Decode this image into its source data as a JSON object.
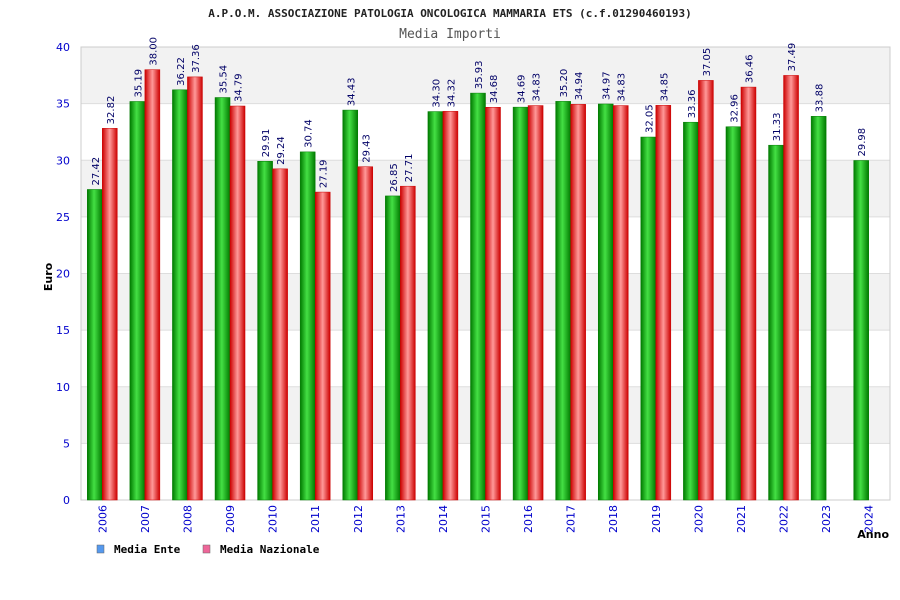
{
  "chart_data": {
    "type": "bar",
    "title": "A.P.O.M. ASSOCIAZIONE PATOLOGIA ONCOLOGICA MAMMARIA ETS (c.f.01290460193)",
    "subtitle": "Media Importi",
    "xlabel": "Anno",
    "ylabel": "Euro",
    "ylim": [
      0,
      40
    ],
    "yticks": [
      "0",
      "5",
      "10",
      "15",
      "20",
      "25",
      "30",
      "35",
      "40"
    ],
    "categories": [
      "2006",
      "2007",
      "2008",
      "2009",
      "2010",
      "2011",
      "2012",
      "2013",
      "2014",
      "2015",
      "2016",
      "2017",
      "2018",
      "2019",
      "2020",
      "2021",
      "2022",
      "2023",
      "2024"
    ],
    "series": [
      {
        "name": "Media Ente",
        "values": [
          27.42,
          35.19,
          36.22,
          35.54,
          29.91,
          30.74,
          34.43,
          26.85,
          34.3,
          35.93,
          34.69,
          35.2,
          34.97,
          32.05,
          33.36,
          32.96,
          31.33,
          33.88,
          29.98
        ],
        "labels": [
          "27.42",
          "35.19",
          "36.22",
          "35.54",
          "29.91",
          "30.74",
          "34.43",
          "26.85",
          "34.30",
          "35.93",
          "34.69",
          "35.20",
          "34.97",
          "32.05",
          "33.36",
          "32.96",
          "31.33",
          "33.88",
          "29.98"
        ]
      },
      {
        "name": "Media Nazionale",
        "values": [
          32.82,
          38.0,
          37.36,
          34.79,
          29.24,
          27.19,
          29.43,
          27.71,
          34.32,
          34.68,
          34.83,
          34.94,
          34.83,
          34.85,
          37.05,
          36.46,
          37.49,
          null,
          null
        ],
        "labels": [
          "32.82",
          "38.00",
          "37.36",
          "34.79",
          "29.24",
          "27.19",
          "29.43",
          "27.71",
          "34.32",
          "34.68",
          "34.83",
          "34.94",
          "34.83",
          "34.85",
          "37.05",
          "36.46",
          "37.49",
          "",
          ""
        ]
      }
    ],
    "grid": true,
    "legend": "bottom-left"
  },
  "legend": {
    "ente_label": "Media Ente",
    "nazionale_label": "Media Nazionale",
    "ente_color": "#5599ee",
    "nazionale_color": "#ee6699"
  },
  "colors": {
    "ente_dark": "#007a00",
    "ente_light": "#33dd33",
    "naz_dark": "#cc0000",
    "naz_light": "#ff8888",
    "axis_text": "#0000cc",
    "band": "#f2f2f2"
  }
}
